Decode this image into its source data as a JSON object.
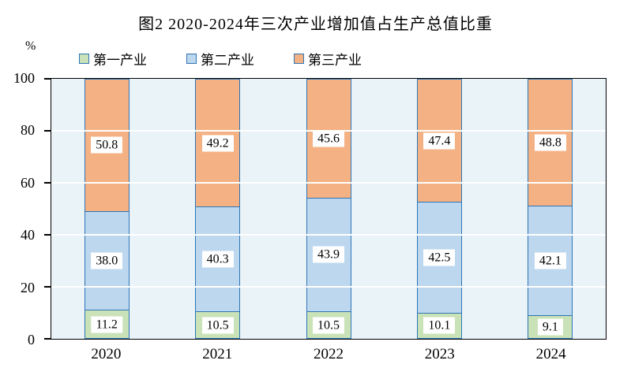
{
  "title": "图2  2020-2024年三次产业增加值占生产总值比重",
  "y_axis": {
    "unit": "%",
    "ticks": [
      0,
      20,
      40,
      60,
      80,
      100
    ]
  },
  "chart_data": {
    "type": "bar",
    "stacked": true,
    "title": "图2  2020-2024年三次产业增加值占生产总值比重",
    "categories": [
      "2020",
      "2021",
      "2022",
      "2023",
      "2024"
    ],
    "series": [
      {
        "name": "第一产业",
        "color": "#c9e2b7",
        "values": [
          11.2,
          10.5,
          10.5,
          10.1,
          9.1
        ]
      },
      {
        "name": "第二产业",
        "color": "#bdd7ee",
        "values": [
          38.0,
          40.3,
          43.9,
          42.5,
          42.1
        ]
      },
      {
        "name": "第三产业",
        "color": "#f4b183",
        "values": [
          50.8,
          49.2,
          45.6,
          47.4,
          48.8
        ]
      }
    ],
    "xlabel": "",
    "ylabel": "%",
    "ylim": [
      0,
      100
    ],
    "yticks": [
      0,
      20,
      40,
      60,
      80,
      100
    ],
    "grid": true,
    "gridline_color": "#ffffff",
    "plot_background": "#e9f3f8",
    "bar_border_color": "#2e75b6",
    "axis_color": "#000000",
    "legend_position": "top",
    "label_decimals": 1
  }
}
